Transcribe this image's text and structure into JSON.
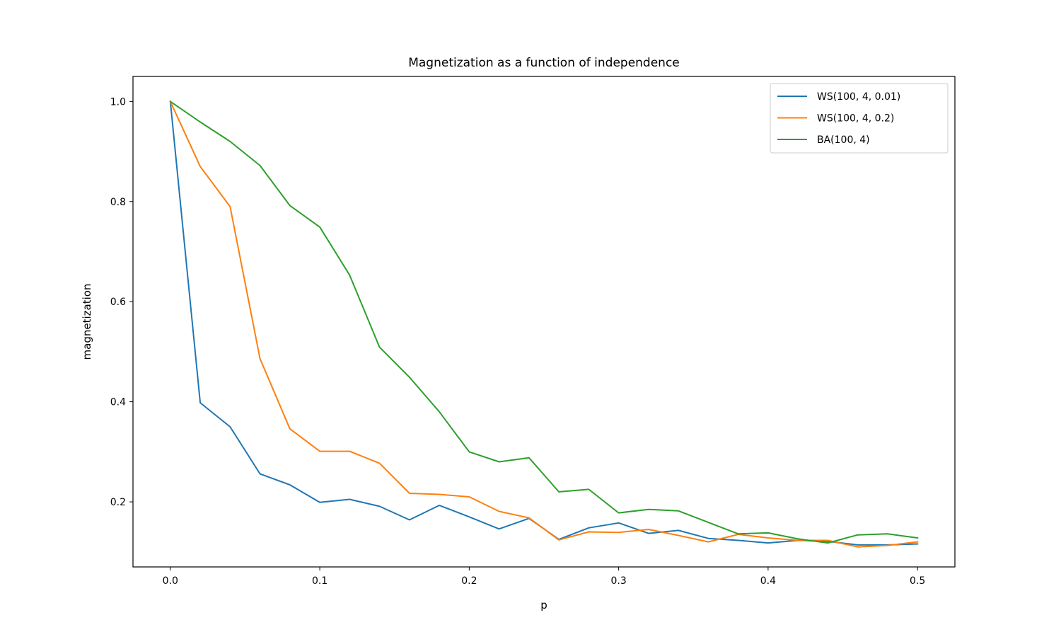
{
  "chart_data": {
    "type": "line",
    "title": "Magnetization as a function of independence",
    "xlabel": "p",
    "ylabel": "magnetization",
    "xlim": [
      -0.025,
      0.525
    ],
    "ylim": [
      0.07,
      1.05
    ],
    "xticks": [
      0.0,
      0.1,
      0.2,
      0.3,
      0.4,
      0.5
    ],
    "xtick_labels": [
      "0.0",
      "0.1",
      "0.2",
      "0.3",
      "0.4",
      "0.5"
    ],
    "yticks": [
      0.2,
      0.4,
      0.6,
      0.8,
      1.0
    ],
    "ytick_labels": [
      "0.2",
      "0.4",
      "0.6",
      "0.8",
      "1.0"
    ],
    "grid": false,
    "legend_position": "upper-right",
    "x": [
      0.0,
      0.02,
      0.04,
      0.06,
      0.08,
      0.1,
      0.12,
      0.14,
      0.16,
      0.18,
      0.2,
      0.22,
      0.24,
      0.26,
      0.28,
      0.3,
      0.32,
      0.34,
      0.36,
      0.38,
      0.4,
      0.42,
      0.44,
      0.46,
      0.48,
      0.5
    ],
    "series": [
      {
        "name": "WS(100, 4, 0.01)",
        "color": "#1f77b4",
        "values": [
          1.0,
          0.398,
          0.35,
          0.256,
          0.234,
          0.199,
          0.205,
          0.191,
          0.164,
          0.193,
          0.17,
          0.146,
          0.167,
          0.125,
          0.148,
          0.158,
          0.137,
          0.143,
          0.127,
          0.123,
          0.118,
          0.123,
          0.121,
          0.114,
          0.114,
          0.116
        ]
      },
      {
        "name": "WS(100, 4, 0.2)",
        "color": "#ff7f0e",
        "values": [
          1.0,
          0.87,
          0.79,
          0.486,
          0.346,
          0.301,
          0.301,
          0.277,
          0.217,
          0.215,
          0.21,
          0.181,
          0.168,
          0.124,
          0.14,
          0.139,
          0.145,
          0.133,
          0.12,
          0.135,
          0.128,
          0.123,
          0.123,
          0.11,
          0.113,
          0.12
        ]
      },
      {
        "name": "BA(100, 4)",
        "color": "#2ca02c",
        "values": [
          1.0,
          0.959,
          0.92,
          0.872,
          0.792,
          0.749,
          0.653,
          0.509,
          0.449,
          0.38,
          0.3,
          0.28,
          0.288,
          0.22,
          0.225,
          0.178,
          0.185,
          0.182,
          0.159,
          0.136,
          0.138,
          0.126,
          0.118,
          0.134,
          0.136,
          0.128
        ]
      }
    ]
  }
}
